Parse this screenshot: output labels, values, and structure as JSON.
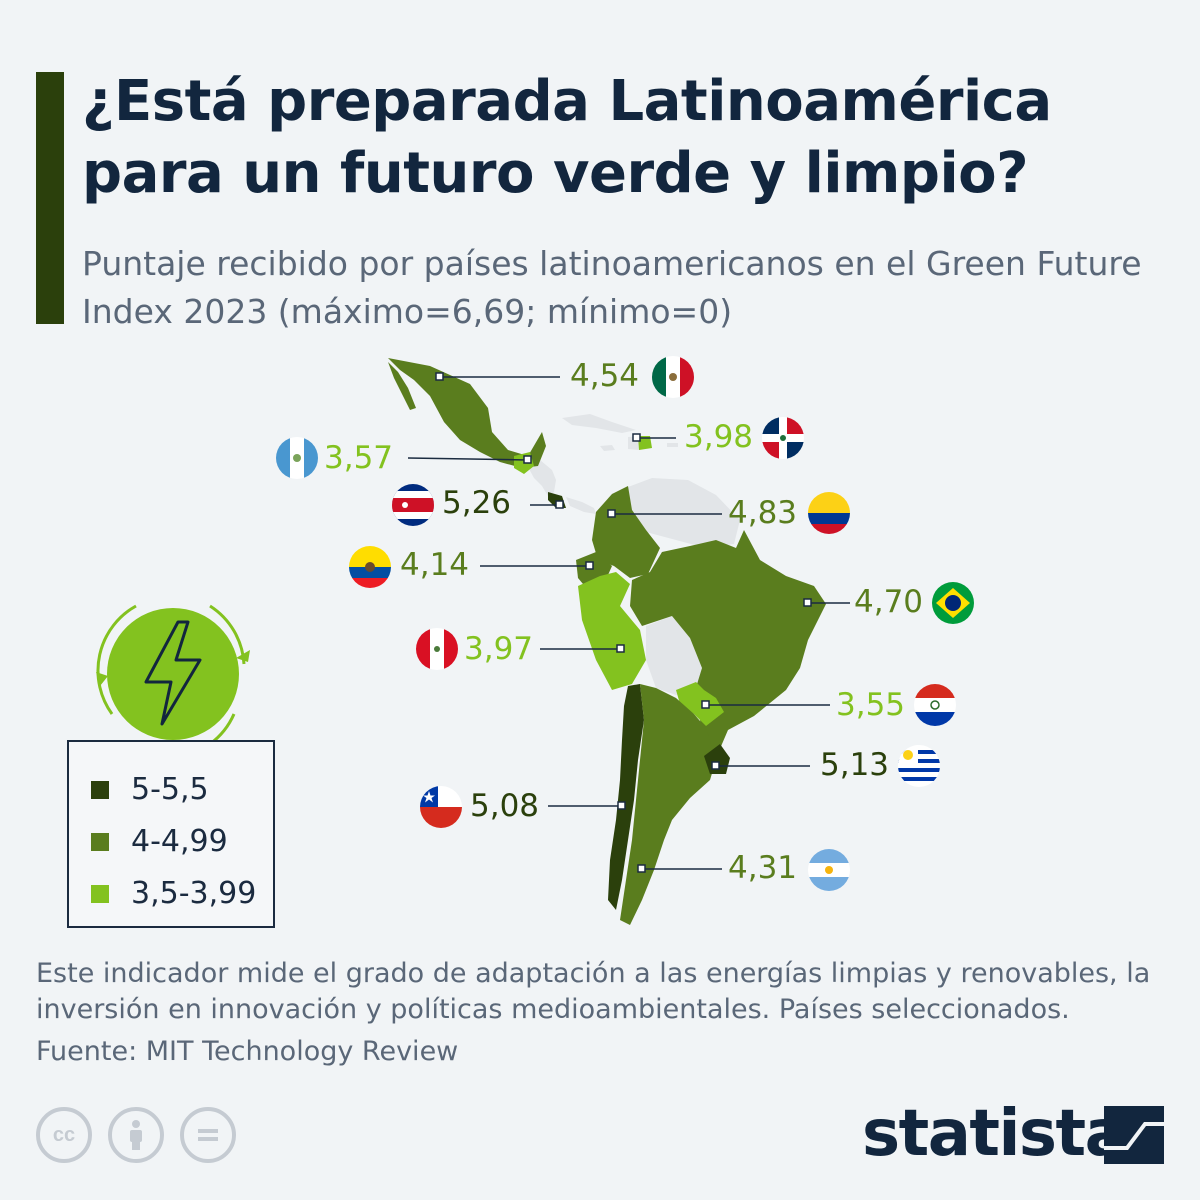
{
  "header": {
    "title": "¿Está preparada Latinoamérica para un futuro verde y limpio?",
    "subtitle": "Puntaje recibido por países latinoamericanos en el Green Future Index 2023 (máximo=6,69; mínimo=0)"
  },
  "colors": {
    "tier_high": "#2b400c",
    "tier_mid": "#5a7d1e",
    "tier_low": "#83c21f",
    "non_selected": "#e2e5e8",
    "title": "#12263e",
    "text": "#5a6778"
  },
  "legend": [
    {
      "label": "5-5,5",
      "color": "#2b400c"
    },
    {
      "label": "4-4,99",
      "color": "#5a7d1e"
    },
    {
      "label": "3,5-3,99",
      "color": "#83c21f"
    }
  ],
  "countries": [
    {
      "id": "mexico",
      "score": "4,54",
      "tier": "mid",
      "flag": "mexico-flag-icon"
    },
    {
      "id": "dominican-republic",
      "score": "3,98",
      "tier": "low",
      "flag": "dominican-republic-flag-icon"
    },
    {
      "id": "guatemala",
      "score": "3,57",
      "tier": "low",
      "flag": "guatemala-flag-icon"
    },
    {
      "id": "costa-rica",
      "score": "5,26",
      "tier": "high",
      "flag": "costa-rica-flag-icon"
    },
    {
      "id": "colombia",
      "score": "4,83",
      "tier": "mid",
      "flag": "colombia-flag-icon"
    },
    {
      "id": "ecuador",
      "score": "4,14",
      "tier": "mid",
      "flag": "ecuador-flag-icon"
    },
    {
      "id": "brazil",
      "score": "4,70",
      "tier": "mid",
      "flag": "brazil-flag-icon"
    },
    {
      "id": "peru",
      "score": "3,97",
      "tier": "low",
      "flag": "peru-flag-icon"
    },
    {
      "id": "paraguay",
      "score": "3,55",
      "tier": "low",
      "flag": "paraguay-flag-icon"
    },
    {
      "id": "uruguay",
      "score": "5,13",
      "tier": "high",
      "flag": "uruguay-flag-icon"
    },
    {
      "id": "chile",
      "score": "5,08",
      "tier": "high",
      "flag": "chile-flag-icon"
    },
    {
      "id": "argentina",
      "score": "4,31",
      "tier": "mid",
      "flag": "argentina-flag-icon"
    }
  ],
  "icon": "lightning-bolt-icon",
  "footer": {
    "note": "Este indicador mide el grado de adaptación a las energías limpias y renovables, la inversión en innovación y políticas medioambientales. Países seleccionados.",
    "source": "Fuente: MIT Technology Review",
    "license_icons": [
      "cc-icon",
      "attribution-icon",
      "no-derivatives-icon"
    ],
    "brand": "statista"
  }
}
